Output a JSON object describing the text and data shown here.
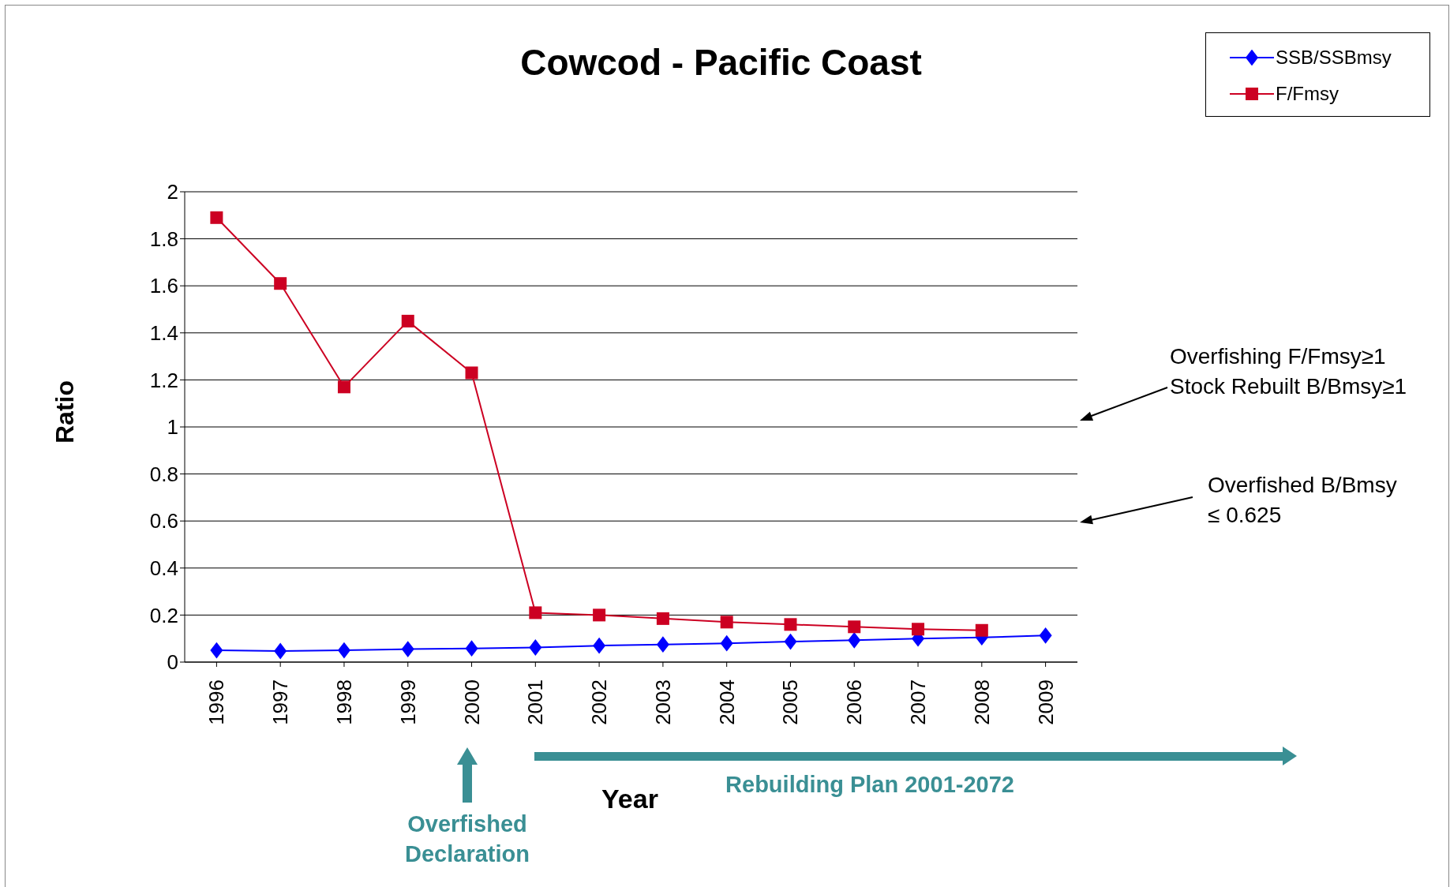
{
  "chart_data": {
    "type": "line",
    "title": "Cowcod - Pacific Coast",
    "ylabel": "Ratio",
    "categories": [
      "1996",
      "1997",
      "1998",
      "1999",
      "2000",
      "2001",
      "2002",
      "2003",
      "2004",
      "2005",
      "2006",
      "2007",
      "2008",
      "2009"
    ],
    "series": [
      {
        "name": "SSB/SSBmsy",
        "color": "#0000ff",
        "marker": "diamond",
        "values": [
          0.05,
          0.047,
          0.05,
          0.055,
          0.058,
          0.062,
          0.07,
          0.075,
          0.08,
          0.087,
          0.093,
          0.1,
          0.105,
          0.113
        ]
      },
      {
        "name": "F/Fmsy",
        "color": "#cc0022",
        "marker": "square",
        "values": [
          1.89,
          1.61,
          1.17,
          1.45,
          1.23,
          0.21,
          0.2,
          0.185,
          0.17,
          0.16,
          0.15,
          0.14,
          0.135,
          null
        ]
      }
    ],
    "ylim": [
      0,
      2
    ],
    "yticks": [
      0,
      0.2,
      0.4,
      0.6,
      0.8,
      1,
      1.2,
      1.4,
      1.6,
      1.8,
      2
    ],
    "grid": "y",
    "legend": "top right",
    "annotations": [
      "Overfishing F/Fmsy≥1",
      "Stock Rebuilt B/Bmsy≥1",
      "Overfished B/Bmsy ≤ 0.625",
      "Overfished Declaration",
      "Rebuilding Plan 2001-2072",
      "Year"
    ]
  }
}
